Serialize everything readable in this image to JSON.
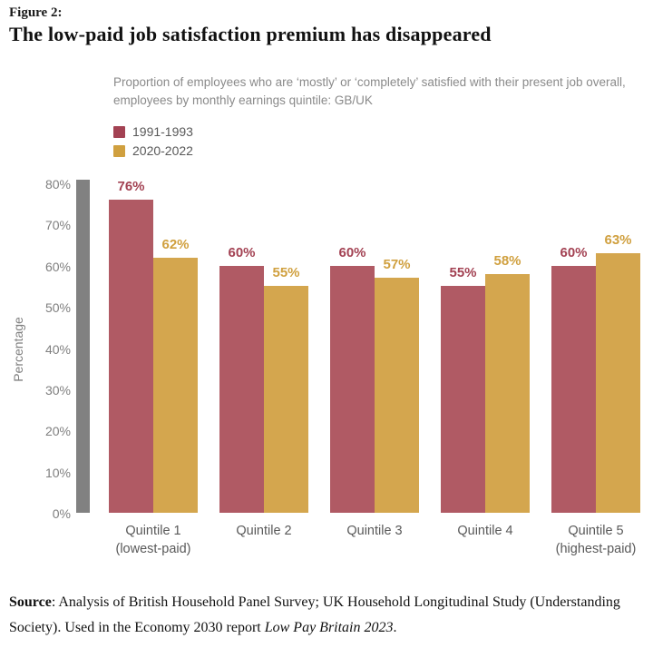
{
  "figure_label": "Figure 2:",
  "title": "The low-paid job satisfaction premium has disappeared",
  "subtitle": "Proportion of employees who are ‘mostly’ or ‘completely’ satisfied with their present job overall, employees by monthly earnings quintile: GB/UK",
  "colors": {
    "background": "#ffffff",
    "axis_bar": "#818181",
    "tick_text": "#7f7f7f",
    "x_label_text": "#595959",
    "subtitle_text": "#8a8a8a"
  },
  "chart_data": {
    "type": "bar",
    "title": "The low-paid job satisfaction premium has disappeared",
    "subtitle": "Proportion of employees who are ‘mostly’ or ‘completely’ satisfied with their present job overall, employees by monthly earnings quintile: GB/UK",
    "categories": [
      {
        "line1": "Quintile 1",
        "line2": "(lowest-paid)"
      },
      {
        "line1": "Quintile 2",
        "line2": ""
      },
      {
        "line1": "Quintile 3",
        "line2": ""
      },
      {
        "line1": "Quintile 4",
        "line2": ""
      },
      {
        "line1": "Quintile 5",
        "line2": "(highest-paid)"
      }
    ],
    "series": [
      {
        "name": "1991-1993",
        "values": [
          76,
          60,
          60,
          55,
          60
        ],
        "bar_color": "#b05a64",
        "label_color": "#a34253"
      },
      {
        "name": "2020-2022",
        "values": [
          62,
          55,
          57,
          58,
          63
        ],
        "bar_color": "#d4a64e",
        "label_color": "#d0a03f"
      }
    ],
    "xlabel": "",
    "ylabel": "Percentage",
    "ylim": [
      0,
      80
    ],
    "ytick_values": [
      0,
      10,
      20,
      30,
      40,
      50,
      60,
      70,
      80
    ],
    "ytick_labels": [
      "0%",
      "10%",
      "20%",
      "30%",
      "40%",
      "50%",
      "60%",
      "70%",
      "80%"
    ],
    "value_suffix": "%",
    "grid": false,
    "legend_position": "top-left"
  },
  "footer": {
    "label": "Source",
    "text": ": Analysis of British Household Panel Survey; UK Household Longitudinal Study (Understanding Society). Used in the Economy 2030 report ",
    "italic": "Low Pay Britain 2023",
    "period": "."
  }
}
